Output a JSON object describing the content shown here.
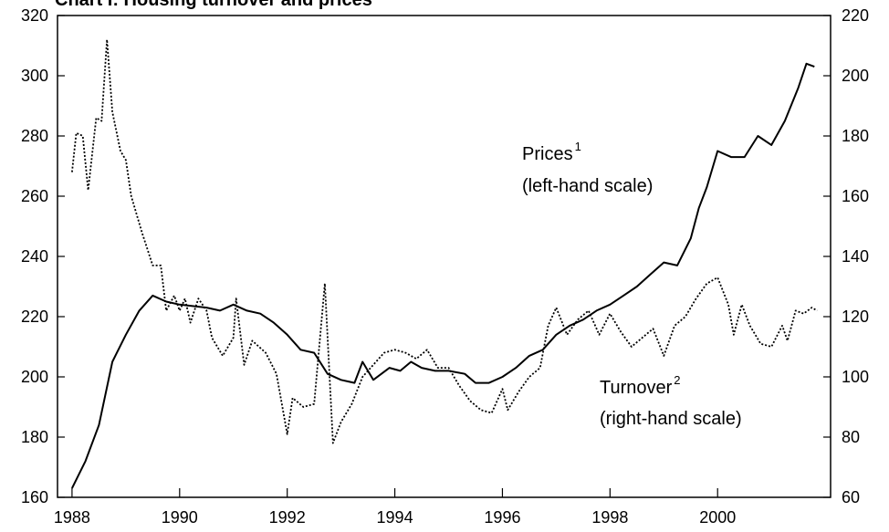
{
  "chart_data": {
    "type": "line",
    "title": "Chart I: Housing turnover and prices",
    "xlim": [
      1987.73,
      2002.1
    ],
    "xticks": [
      1988,
      1990,
      1992,
      1994,
      1996,
      1998,
      2000
    ],
    "ylim": [
      160,
      320
    ],
    "yticks": [
      160,
      180,
      200,
      220,
      240,
      260,
      280,
      300,
      320
    ],
    "y2lim": [
      60,
      220
    ],
    "y2ticks": [
      60,
      80,
      100,
      120,
      140,
      160,
      180,
      200,
      220
    ],
    "grid": false,
    "series": [
      {
        "name": "Prices",
        "axis": "y",
        "color": "#000000",
        "line_style": "solid",
        "x": [
          1988.0,
          1988.25,
          1988.5,
          1988.75,
          1989.0,
          1989.25,
          1989.5,
          1989.75,
          1990.0,
          1990.5,
          1990.75,
          1991.0,
          1991.25,
          1991.5,
          1991.75,
          1992.0,
          1992.25,
          1992.5,
          1992.75,
          1993.0,
          1993.25,
          1993.4,
          1993.6,
          1993.9,
          1994.1,
          1994.3,
          1994.5,
          1994.75,
          1995.0,
          1995.3,
          1995.5,
          1995.75,
          1996.0,
          1996.25,
          1996.5,
          1996.75,
          1997.0,
          1997.25,
          1997.5,
          1997.75,
          1998.0,
          1998.25,
          1998.5,
          1998.75,
          1999.0,
          1999.25,
          1999.5,
          1999.65,
          1999.8,
          2000.0,
          2000.25,
          2000.5,
          2000.75,
          2001.0,
          2001.25,
          2001.5,
          2001.65,
          2001.8
        ],
        "values": [
          163,
          172,
          184,
          205,
          214,
          222,
          227,
          225,
          224,
          223,
          222,
          224,
          222,
          221,
          218,
          214,
          209,
          208,
          201,
          199,
          198,
          205,
          199,
          203,
          202,
          205,
          203,
          202,
          202,
          201,
          198,
          198,
          200,
          203,
          207,
          209,
          214,
          217,
          219,
          222,
          224,
          227,
          230,
          234,
          238,
          237,
          246,
          256,
          263,
          275,
          273,
          273,
          280,
          277,
          285,
          296,
          304,
          303
        ]
      },
      {
        "name": "Turnover",
        "axis": "y2",
        "color": "#000000",
        "line_style": "dotted",
        "x": [
          1988.0,
          1988.08,
          1988.2,
          1988.3,
          1988.45,
          1988.55,
          1988.65,
          1988.75,
          1988.9,
          1989.0,
          1989.1,
          1989.3,
          1989.5,
          1989.65,
          1989.75,
          1989.9,
          1990.0,
          1990.1,
          1990.2,
          1990.35,
          1990.5,
          1990.6,
          1990.8,
          1991.0,
          1991.05,
          1991.2,
          1991.35,
          1991.6,
          1991.8,
          1992.0,
          1992.1,
          1992.3,
          1992.5,
          1992.7,
          1992.85,
          1993.0,
          1993.2,
          1993.4,
          1993.6,
          1993.8,
          1994.0,
          1994.2,
          1994.4,
          1994.6,
          1994.8,
          1995.0,
          1995.2,
          1995.4,
          1995.6,
          1995.8,
          1996.0,
          1996.1,
          1996.3,
          1996.5,
          1996.7,
          1996.85,
          1997.0,
          1997.2,
          1997.4,
          1997.6,
          1997.8,
          1998.0,
          1998.2,
          1998.4,
          1998.6,
          1998.8,
          1999.0,
          1999.2,
          1999.4,
          1999.6,
          1999.8,
          2000.0,
          2000.2,
          2000.3,
          2000.45,
          2000.6,
          2000.8,
          2001.0,
          2001.2,
          2001.3,
          2001.45,
          2001.6,
          2001.75,
          2001.85
        ],
        "values": [
          168,
          181,
          180,
          162,
          186,
          185,
          212,
          188,
          175,
          172,
          160,
          148,
          137,
          137,
          122,
          127,
          122,
          126,
          118,
          126,
          122,
          113,
          107,
          113,
          126,
          104,
          112,
          108,
          101,
          81,
          93,
          90,
          91,
          131,
          78,
          85,
          91,
          100,
          104,
          108,
          109,
          108,
          106,
          109,
          103,
          103,
          97,
          92,
          89,
          88,
          96,
          89,
          95,
          100,
          103,
          117,
          123,
          114,
          119,
          122,
          114,
          121,
          115,
          110,
          113,
          116,
          107,
          117,
          120,
          126,
          131,
          133,
          124,
          114,
          124,
          117,
          111,
          110,
          117,
          112,
          122,
          121,
          123,
          122
        ]
      }
    ],
    "annotations": [
      {
        "text": "Prices",
        "superscript": "1",
        "note": "(left-hand scale)"
      },
      {
        "text": "Turnover",
        "superscript": "2",
        "note": "(right-hand scale)"
      }
    ]
  }
}
